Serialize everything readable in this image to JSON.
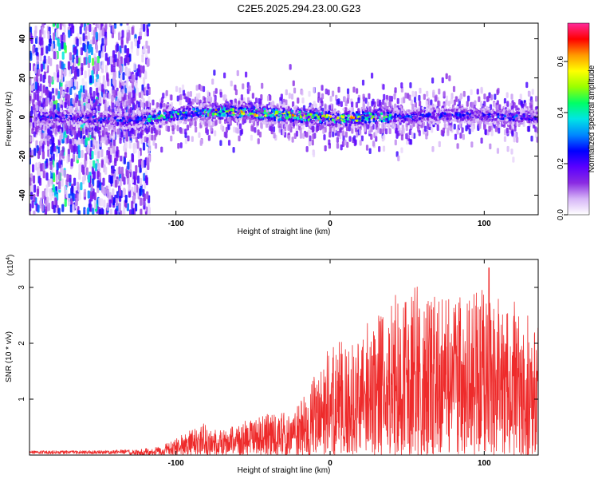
{
  "title": "C2E5.2025.294.23.00.G23",
  "colors": {
    "snr_line": "#ee2b2b",
    "axis": "#000000",
    "background": "#ffffff"
  },
  "chart_data": [
    {
      "type": "heatmap",
      "xlabel": "Height of straight line (km)",
      "ylabel": "Frequency (Hz)",
      "xlim": [
        -195,
        135
      ],
      "ylim": [
        -50,
        48
      ],
      "x_ticks": [
        {
          "value": -100,
          "label": "-100"
        },
        {
          "value": 0,
          "label": "0"
        },
        {
          "value": 100,
          "label": "100"
        }
      ],
      "y_ticks": [
        {
          "value": -40,
          "label": "-40"
        },
        {
          "value": -20,
          "label": "-20"
        },
        {
          "value": 0,
          "label": "0"
        },
        {
          "value": 20,
          "label": "20"
        },
        {
          "value": 40,
          "label": "40"
        }
      ],
      "colorbar": {
        "label": "Normalized spectral amplitude",
        "range": [
          0,
          0.75
        ],
        "ticks": [
          {
            "value": 0.0,
            "label": "0.0"
          },
          {
            "value": 0.2,
            "label": "0.2"
          },
          {
            "value": 0.4,
            "label": "0.4"
          },
          {
            "value": 0.6,
            "label": "0.6"
          }
        ],
        "stops": [
          "#ffffff",
          "#d6b5f7",
          "#8a2be2",
          "#5a00ff",
          "#0000ff",
          "#0088ff",
          "#00e5e5",
          "#00ff66",
          "#99ff00",
          "#ffff00",
          "#ff9900",
          "#ff0000",
          "#ff2a9c"
        ]
      },
      "ridge": {
        "center_freq": [
          [
            -195,
            0
          ],
          [
            -170,
            0
          ],
          [
            -150,
            -1
          ],
          [
            -130,
            -2
          ],
          [
            -110,
            0
          ],
          [
            -90,
            2
          ],
          [
            -70,
            3
          ],
          [
            -50,
            2
          ],
          [
            -30,
            1
          ],
          [
            -10,
            0
          ],
          [
            10,
            -1
          ],
          [
            30,
            0
          ],
          [
            50,
            0
          ],
          [
            70,
            1
          ],
          [
            90,
            1
          ],
          [
            110,
            0
          ],
          [
            135,
            0
          ]
        ],
        "peak_amplitude": 0.72
      }
    },
    {
      "type": "line",
      "xlabel": "Height of straight line (km)",
      "ylabel": "SNR (10 * v/v)",
      "y_scale_label": "(x10",
      "y_scale_exp": "4",
      "y_scale_close": ")",
      "xlim": [
        -195,
        135
      ],
      "ylim": [
        0,
        3.5
      ],
      "x_ticks": [
        {
          "value": -100,
          "label": "-100"
        },
        {
          "value": 0,
          "label": "0"
        },
        {
          "value": 100,
          "label": "100"
        }
      ],
      "y_ticks": [
        {
          "value": 1,
          "label": "1"
        },
        {
          "value": 2,
          "label": "2"
        },
        {
          "value": 3,
          "label": "3"
        }
      ],
      "envelope": [
        [
          -195,
          0.06
        ],
        [
          -150,
          0.06
        ],
        [
          -130,
          0.08
        ],
        [
          -110,
          0.15
        ],
        [
          -100,
          0.3
        ],
        [
          -90,
          0.45
        ],
        [
          -80,
          0.6
        ],
        [
          -70,
          0.45
        ],
        [
          -60,
          0.55
        ],
        [
          -50,
          0.7
        ],
        [
          -40,
          0.75
        ],
        [
          -30,
          0.85
        ],
        [
          -25,
          0.6
        ],
        [
          -22,
          0.9
        ],
        [
          -15,
          1.1
        ],
        [
          -5,
          1.8
        ],
        [
          5,
          2.1
        ],
        [
          20,
          2.4
        ],
        [
          40,
          2.7
        ],
        [
          60,
          2.9
        ],
        [
          80,
          2.8
        ],
        [
          100,
          3.0
        ],
        [
          110,
          2.8
        ],
        [
          120,
          2.9
        ],
        [
          135,
          2.3
        ]
      ],
      "peak_snr": 3.35
    }
  ]
}
